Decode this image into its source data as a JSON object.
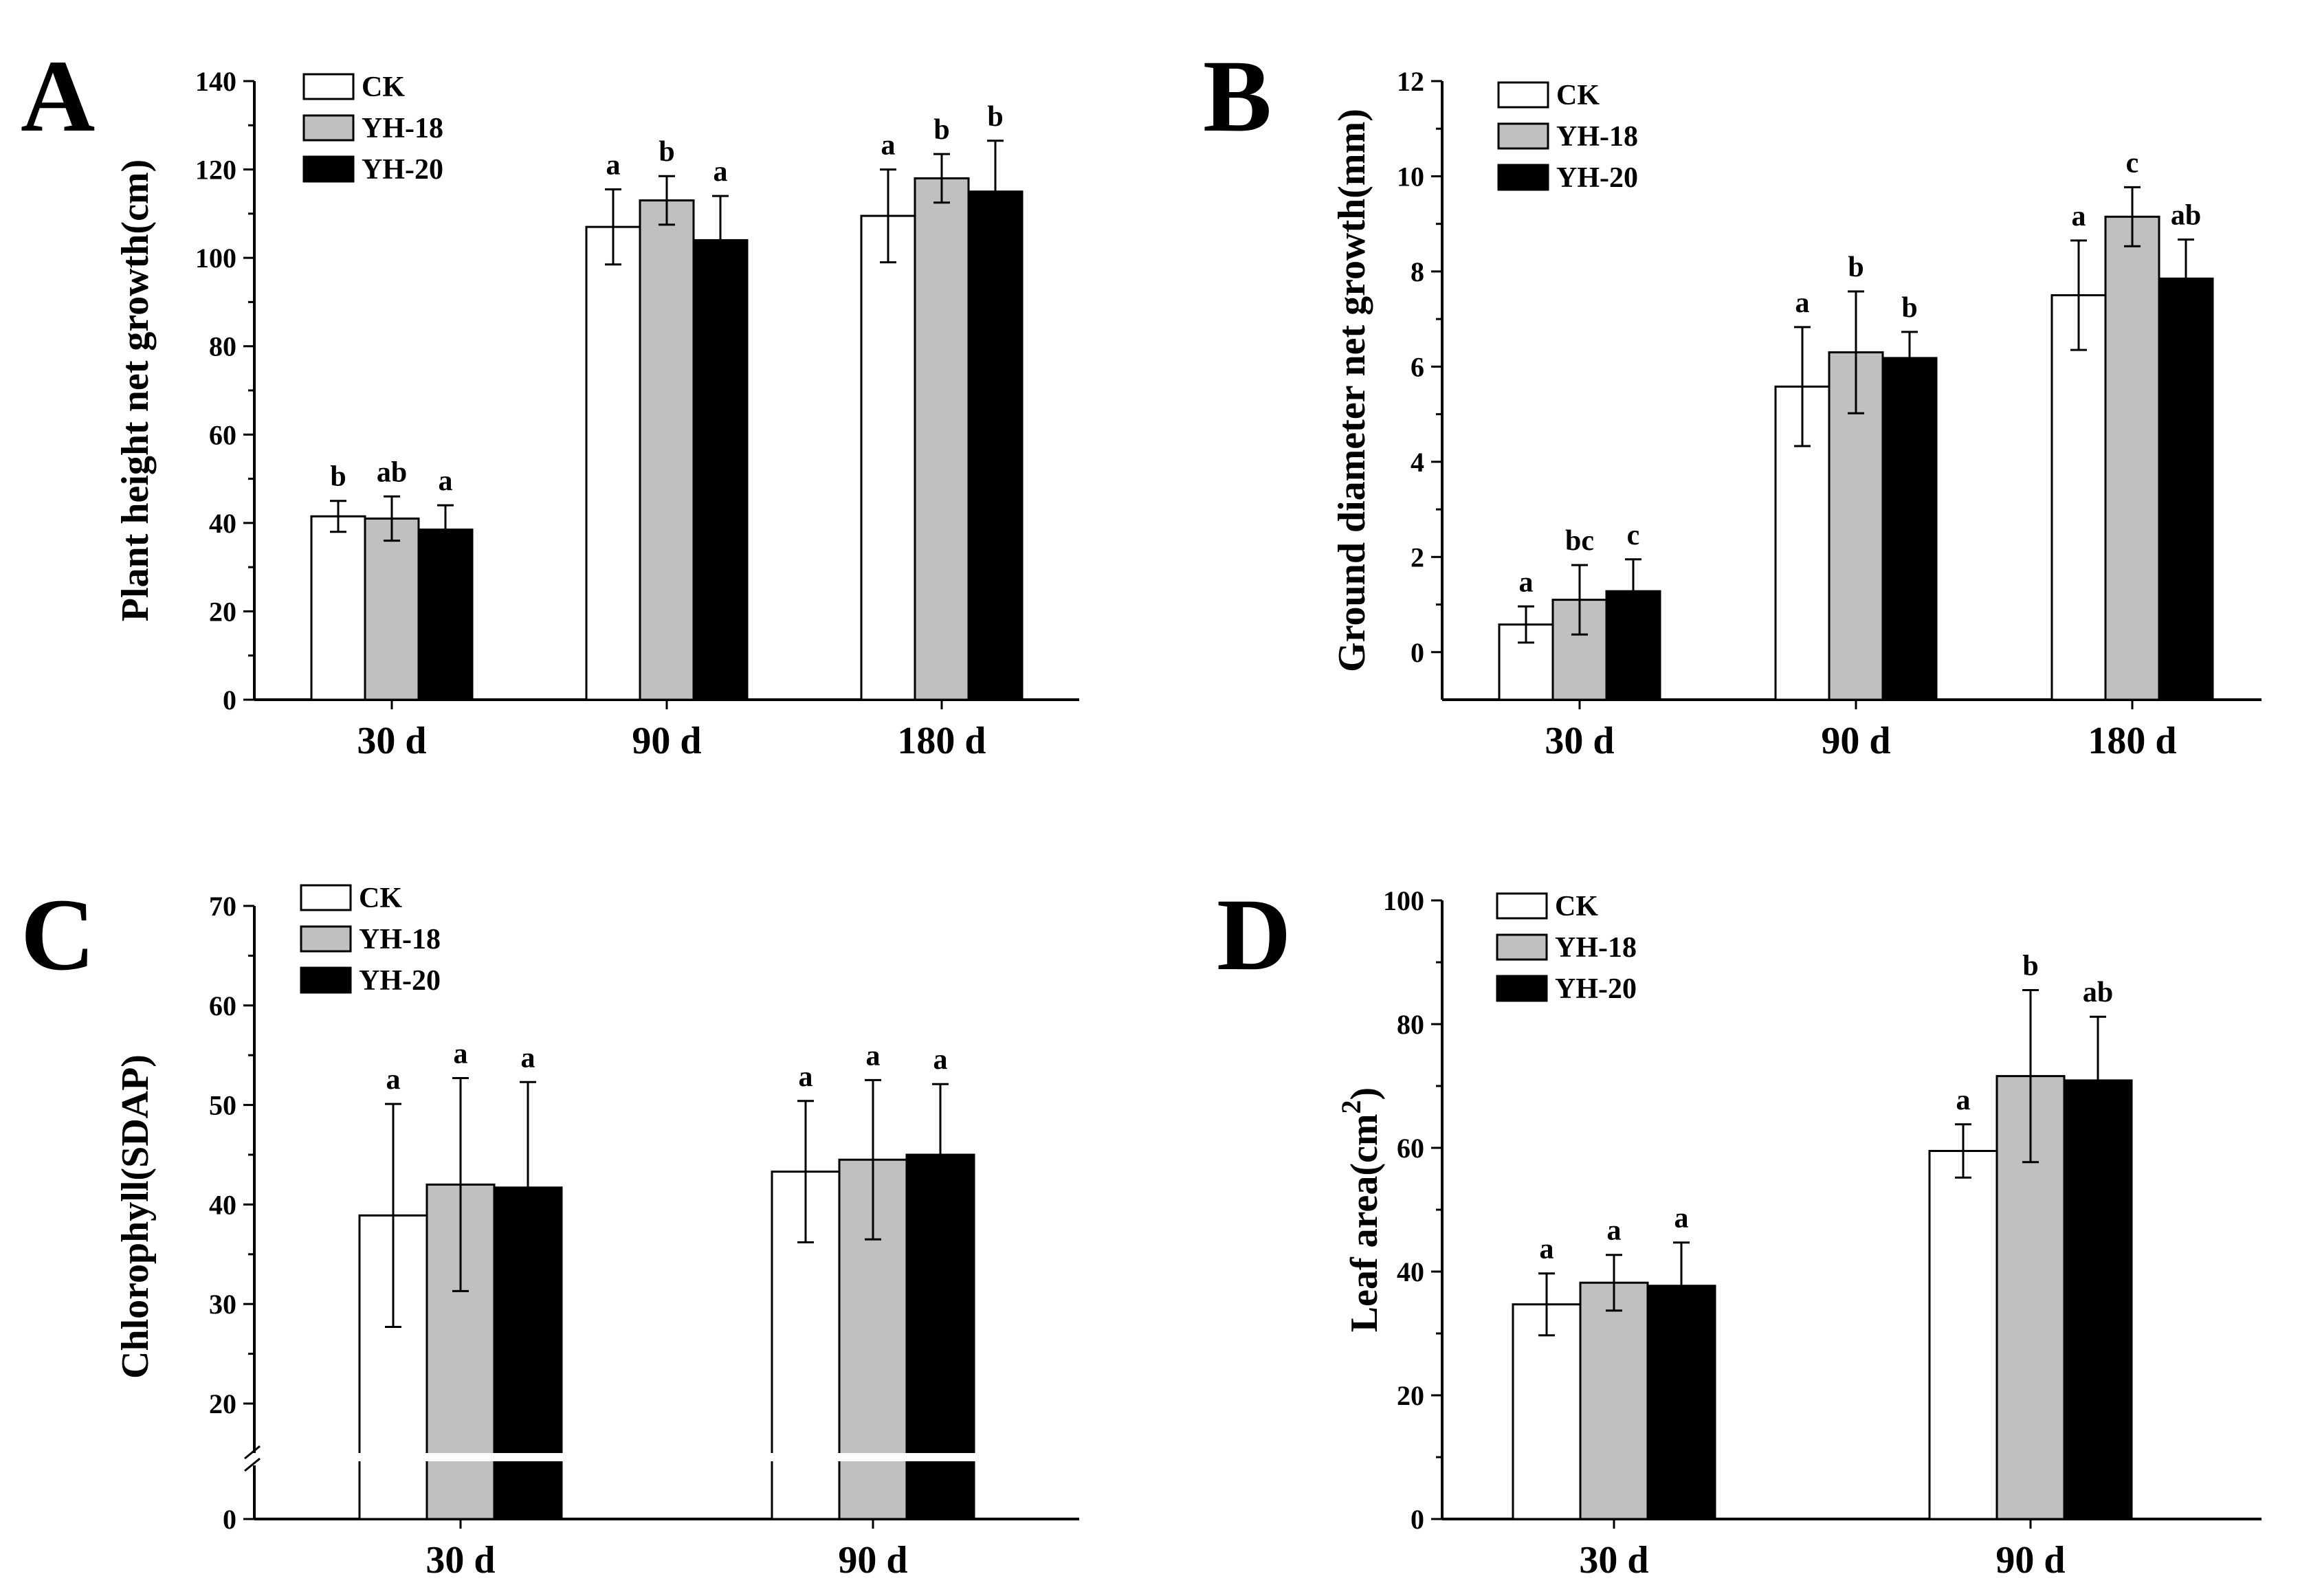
{
  "colors": {
    "CK": "#ffffff",
    "YH-18": "#c0c0c0",
    "YH-20": "#000000"
  },
  "chart_data": [
    {
      "type": "bar",
      "panel": "A",
      "title": "",
      "xlabel": "",
      "ylabel": "Plant  height net growth(cm)",
      "ylim": [
        0,
        140
      ],
      "yticks": [
        "0",
        "20",
        "40",
        "60",
        "80",
        "100",
        "120",
        "140"
      ],
      "categories": [
        "30 d",
        "90 d",
        "180 d"
      ],
      "legend": [
        "CK",
        "YH-18",
        "YH-20"
      ],
      "legend_position": "top-left",
      "series": [
        {
          "name": "CK",
          "values": [
            41.5,
            107,
            109.5
          ],
          "errors": [
            3.5,
            8.5,
            10.5
          ],
          "letters": [
            "b",
            "a",
            "a"
          ]
        },
        {
          "name": "YH-18",
          "values": [
            41,
            113,
            118
          ],
          "errors": [
            5,
            5.5,
            5.5
          ],
          "letters": [
            "ab",
            "b",
            "b"
          ]
        },
        {
          "name": "YH-20",
          "values": [
            38.5,
            104,
            115
          ],
          "errors": [
            5.5,
            10,
            11.5
          ],
          "letters": [
            "a",
            "a",
            "b"
          ]
        }
      ]
    },
    {
      "type": "bar",
      "panel": "B",
      "title": "",
      "xlabel": "",
      "ylabel": "Ground diameter net growth(mm)",
      "ylim": [
        -1,
        12
      ],
      "yticks": [
        "0",
        "2",
        "4",
        "6",
        "8",
        "10",
        "12"
      ],
      "categories": [
        "30 d",
        "90 d",
        "180 d"
      ],
      "legend": [
        "CK",
        "YH-18",
        "YH-20"
      ],
      "legend_position": "top-left",
      "series": [
        {
          "name": "CK",
          "values": [
            0.58,
            5.58,
            7.5
          ],
          "errors": [
            0.38,
            1.25,
            1.15
          ],
          "letters": [
            "a",
            "a",
            "a"
          ]
        },
        {
          "name": "YH-18",
          "values": [
            1.1,
            6.3,
            9.15
          ],
          "errors": [
            0.73,
            1.28,
            0.62
          ],
          "letters": [
            "bc",
            "b",
            "c"
          ]
        },
        {
          "name": "YH-20",
          "values": [
            1.28,
            6.18,
            7.85
          ],
          "errors": [
            0.67,
            0.55,
            0.82
          ],
          "letters": [
            "c",
            "b",
            "ab"
          ]
        }
      ]
    },
    {
      "type": "bar",
      "panel": "C",
      "title": "",
      "xlabel": "",
      "ylabel": "Chlorophyll(SDAP)",
      "ylim": [
        0,
        70
      ],
      "axis_break": "between 0 and 20",
      "yticks": [
        "0",
        "20",
        "30",
        "40",
        "50",
        "60",
        "70"
      ],
      "categories": [
        "30 d",
        "90 d"
      ],
      "legend": [
        "CK",
        "YH-18",
        "YH-20"
      ],
      "legend_position": "top-left",
      "series": [
        {
          "name": "CK",
          "values": [
            38.9,
            43.3
          ],
          "errors": [
            11.2,
            7.1
          ],
          "letters": [
            "a",
            "a"
          ]
        },
        {
          "name": "YH-18",
          "values": [
            42,
            44.5
          ],
          "errors": [
            10.7,
            8
          ],
          "letters": [
            "a",
            "a"
          ]
        },
        {
          "name": "YH-20",
          "values": [
            41.7,
            45
          ],
          "errors": [
            10.6,
            7.1
          ],
          "letters": [
            "a",
            "a"
          ]
        }
      ]
    },
    {
      "type": "bar",
      "panel": "D",
      "title": "",
      "xlabel": "",
      "ylabel_prefix": "Leaf area(cm",
      "ylabel_sup": "2",
      "ylabel_suffix": ")",
      "ylim": [
        0,
        100
      ],
      "yticks": [
        "0",
        "20",
        "40",
        "60",
        "80",
        "100"
      ],
      "categories": [
        "30 d",
        "90 d"
      ],
      "legend": [
        "CK",
        "YH-18",
        "YH-20"
      ],
      "legend_position": "top-left",
      "series": [
        {
          "name": "CK",
          "values": [
            34.7,
            59.5
          ],
          "errors": [
            5,
            4.3
          ],
          "letters": [
            "a",
            "a"
          ]
        },
        {
          "name": "YH-18",
          "values": [
            38.2,
            71.6
          ],
          "errors": [
            4.5,
            13.9
          ],
          "letters": [
            "a",
            "b"
          ]
        },
        {
          "name": "YH-20",
          "values": [
            37.7,
            70.9
          ],
          "errors": [
            7,
            10.3
          ],
          "letters": [
            "a",
            "ab"
          ]
        }
      ]
    }
  ]
}
